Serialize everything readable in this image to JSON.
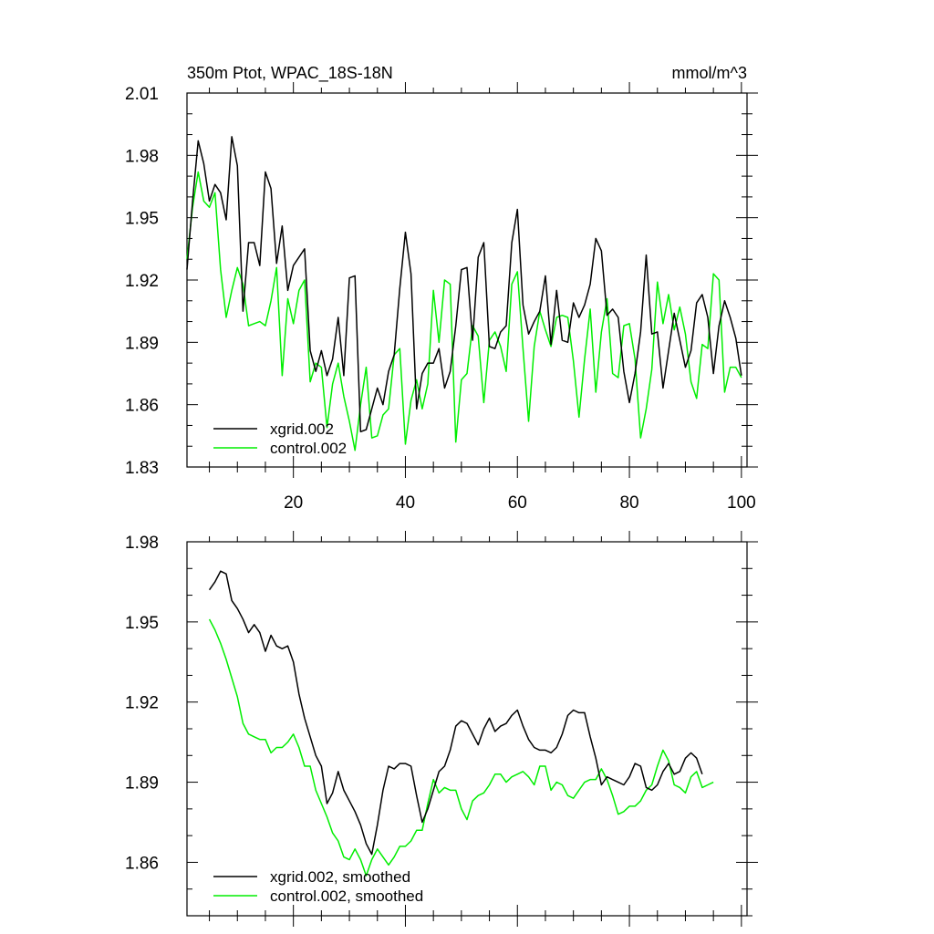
{
  "chart_data": [
    {
      "type": "line",
      "title": "350m Ptot, WPAC_18S-18N",
      "units": "mmol/m^3",
      "xlim": [
        1,
        101
      ],
      "ylim": [
        1.83,
        2.01
      ],
      "yticks": [
        "2.01",
        "1.98",
        "1.95",
        "1.92",
        "1.89",
        "1.86",
        "1.83"
      ],
      "xticks": [
        "20",
        "40",
        "60",
        "80",
        "100"
      ],
      "legend_position": "bottom-left",
      "series": [
        {
          "name": "xgrid.002",
          "color": "#000000",
          "values": [
            1.925,
            1.958,
            1.987,
            1.976,
            1.958,
            1.966,
            1.962,
            1.949,
            1.989,
            1.975,
            1.905,
            1.938,
            1.938,
            1.927,
            1.972,
            1.964,
            1.928,
            1.946,
            1.915,
            1.927,
            1.931,
            1.935,
            1.886,
            1.876,
            1.886,
            1.874,
            1.882,
            1.902,
            1.874,
            1.921,
            1.922,
            1.847,
            1.848,
            1.858,
            1.868,
            1.86,
            1.876,
            1.884,
            1.916,
            1.943,
            1.923,
            1.858,
            1.875,
            1.88,
            1.88,
            1.887,
            1.868,
            1.876,
            1.898,
            1.925,
            1.926,
            1.891,
            1.931,
            1.938,
            1.888,
            1.887,
            1.895,
            1.898,
            1.938,
            1.954,
            1.908,
            1.894,
            1.9,
            1.905,
            1.922,
            1.889,
            1.915,
            1.891,
            1.89,
            1.909,
            1.902,
            1.908,
            1.918,
            1.94,
            1.934,
            1.903,
            1.906,
            1.902,
            1.876,
            1.861,
            1.875,
            1.895,
            1.932,
            1.894,
            1.895,
            1.868,
            1.886,
            1.904,
            1.891,
            1.878,
            1.886,
            1.909,
            1.913,
            1.902,
            1.875,
            1.898,
            1.91,
            1.902,
            1.892,
            1.874
          ]
        },
        {
          "name": "control.002",
          "color": "#00ee00",
          "values": [
            1.93,
            1.955,
            1.972,
            1.958,
            1.955,
            1.962,
            1.925,
            1.902,
            1.915,
            1.926,
            1.918,
            1.898,
            1.899,
            1.9,
            1.898,
            1.91,
            1.926,
            1.874,
            1.911,
            1.899,
            1.915,
            1.92,
            1.871,
            1.88,
            1.878,
            1.849,
            1.87,
            1.88,
            1.864,
            1.852,
            1.838,
            1.86,
            1.878,
            1.844,
            1.845,
            1.855,
            1.858,
            1.884,
            1.887,
            1.841,
            1.862,
            1.872,
            1.858,
            1.87,
            1.915,
            1.89,
            1.92,
            1.918,
            1.842,
            1.872,
            1.875,
            1.898,
            1.893,
            1.861,
            1.891,
            1.895,
            1.888,
            1.876,
            1.918,
            1.924,
            1.887,
            1.852,
            1.888,
            1.905,
            1.896,
            1.888,
            1.902,
            1.903,
            1.902,
            1.881,
            1.854,
            1.882,
            1.906,
            1.866,
            1.895,
            1.911,
            1.875,
            1.873,
            1.898,
            1.899,
            1.882,
            1.844,
            1.858,
            1.877,
            1.919,
            1.899,
            1.913,
            1.896,
            1.907,
            1.894,
            1.871,
            1.863,
            1.889,
            1.887,
            1.923,
            1.92,
            1.866,
            1.878,
            1.878,
            1.873
          ]
        }
      ]
    },
    {
      "type": "line",
      "xlim": [
        1,
        101
      ],
      "ylim": [
        1.84,
        1.98
      ],
      "yticks": [
        "1.98",
        "1.95",
        "1.92",
        "1.89",
        "1.86"
      ],
      "legend_position": "bottom-left",
      "series": [
        {
          "name": "xgrid.002, smoothed",
          "color": "#000000",
          "x_start": 5,
          "values": [
            1.962,
            1.965,
            1.969,
            1.968,
            1.958,
            1.955,
            1.951,
            1.946,
            1.949,
            1.946,
            1.939,
            1.945,
            1.941,
            1.94,
            1.941,
            1.935,
            1.923,
            1.914,
            1.907,
            1.9,
            1.896,
            1.882,
            1.886,
            1.894,
            1.887,
            1.883,
            1.879,
            1.874,
            1.867,
            1.863,
            1.874,
            1.887,
            1.896,
            1.895,
            1.897,
            1.897,
            1.896,
            1.885,
            1.875,
            1.88,
            1.887,
            1.894,
            1.896,
            1.902,
            1.911,
            1.913,
            1.912,
            1.908,
            1.904,
            1.91,
            1.914,
            1.909,
            1.911,
            1.912,
            1.915,
            1.917,
            1.911,
            1.906,
            1.903,
            1.902,
            1.902,
            1.901,
            1.903,
            1.908,
            1.915,
            1.917,
            1.916,
            1.916,
            1.907,
            1.899,
            1.889,
            1.892,
            1.891,
            1.89,
            1.889,
            1.892,
            1.897,
            1.896,
            1.888,
            1.887,
            1.889,
            1.894,
            1.897,
            1.893,
            1.894,
            1.899,
            1.901,
            1.899,
            1.893
          ]
        },
        {
          "name": "control.002, smoothed",
          "color": "#00ee00",
          "x_start": 5,
          "values": [
            1.951,
            1.947,
            1.942,
            1.936,
            1.929,
            1.922,
            1.912,
            1.908,
            1.907,
            1.906,
            1.906,
            1.901,
            1.903,
            1.903,
            1.905,
            1.908,
            1.903,
            1.896,
            1.896,
            1.887,
            1.882,
            1.877,
            1.871,
            1.868,
            1.862,
            1.861,
            1.865,
            1.861,
            1.855,
            1.861,
            1.865,
            1.862,
            1.859,
            1.862,
            1.866,
            1.866,
            1.868,
            1.872,
            1.872,
            1.882,
            1.891,
            1.886,
            1.888,
            1.887,
            1.887,
            1.88,
            1.876,
            1.883,
            1.885,
            1.886,
            1.889,
            1.893,
            1.893,
            1.89,
            1.892,
            1.893,
            1.894,
            1.892,
            1.889,
            1.896,
            1.896,
            1.887,
            1.89,
            1.889,
            1.885,
            1.884,
            1.887,
            1.89,
            1.891,
            1.891,
            1.895,
            1.891,
            1.885,
            1.878,
            1.879,
            1.881,
            1.881,
            1.883,
            1.887,
            1.889,
            1.896,
            1.902,
            1.898,
            1.889,
            1.888,
            1.886,
            1.892,
            1.894,
            1.888,
            1.889,
            1.89
          ]
        }
      ]
    }
  ]
}
